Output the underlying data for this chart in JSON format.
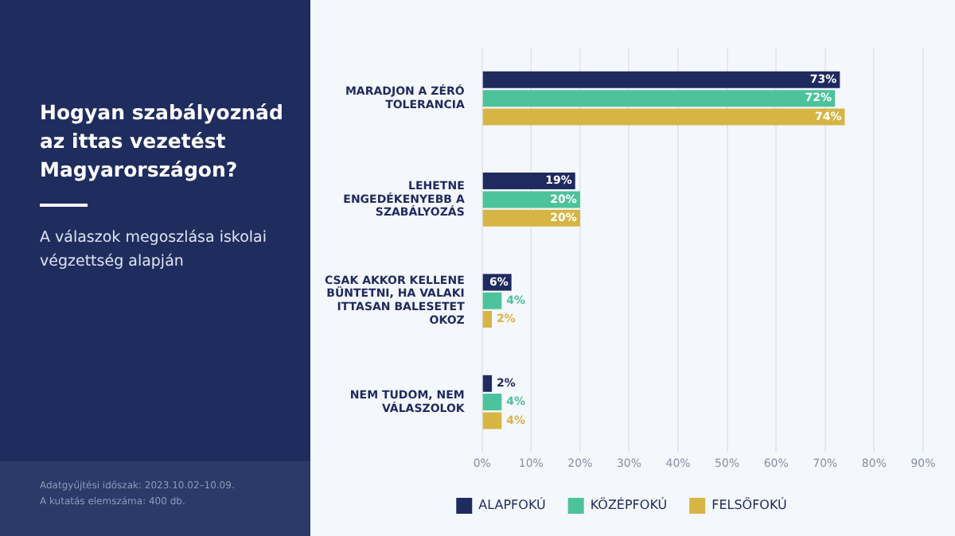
{
  "chart_data": {
    "type": "bar",
    "orientation": "horizontal",
    "title": "Hogyan szabályoznád az ittas vezetést Magyarországon?",
    "subtitle": "A válaszok megoszlása iskolai végzettség alapján",
    "annotations": [
      "Adatgyűjtési időszak: 2023.10.02–10.09.",
      "A kutatás elemszáma: 400 db."
    ],
    "categories": [
      "MARADJON A ZÉRÓ TOLERANCIA",
      "LEHETNE ENGEDÉKENYEBB A SZABÁLYOZÁS",
      "CSAK AKKOR KELLENE BÜNTETNI, HA VALAKI ITTASAN BALESETET OKOZ",
      "NEM TUDOM, NEM VÁLASZOLOK"
    ],
    "series": [
      {
        "name": "ALAPFOKÚ",
        "color": "#1f2a5e",
        "values": [
          73,
          19,
          6,
          2
        ],
        "value_labels": [
          "73%",
          "19%",
          "6%",
          "2%"
        ]
      },
      {
        "name": "KÖZÉPFOKÚ",
        "color": "#4cc39b",
        "values": [
          72,
          20,
          4,
          4
        ],
        "value_labels": [
          "72%",
          "20%",
          "4%",
          "4%"
        ]
      },
      {
        "name": "FELSŐFOKÚ",
        "color": "#d6b545",
        "values": [
          74,
          20,
          2,
          4
        ],
        "value_labels": [
          "74%",
          "20%",
          "2%",
          "4%"
        ]
      }
    ],
    "xlim": [
      0,
      90
    ],
    "xticks": [
      {
        "value": 0,
        "label": "0%"
      },
      {
        "value": 10,
        "label": "10%"
      },
      {
        "value": 20,
        "label": "20%"
      },
      {
        "value": 30,
        "label": "30%"
      },
      {
        "value": 40,
        "label": "40%"
      },
      {
        "value": 50,
        "label": "50%"
      },
      {
        "value": 60,
        "label": "60%"
      },
      {
        "value": 70,
        "label": "70%"
      },
      {
        "value": 80,
        "label": "80%"
      },
      {
        "value": 90,
        "label": "90%"
      }
    ],
    "grid": "x",
    "legend": "bottom"
  }
}
